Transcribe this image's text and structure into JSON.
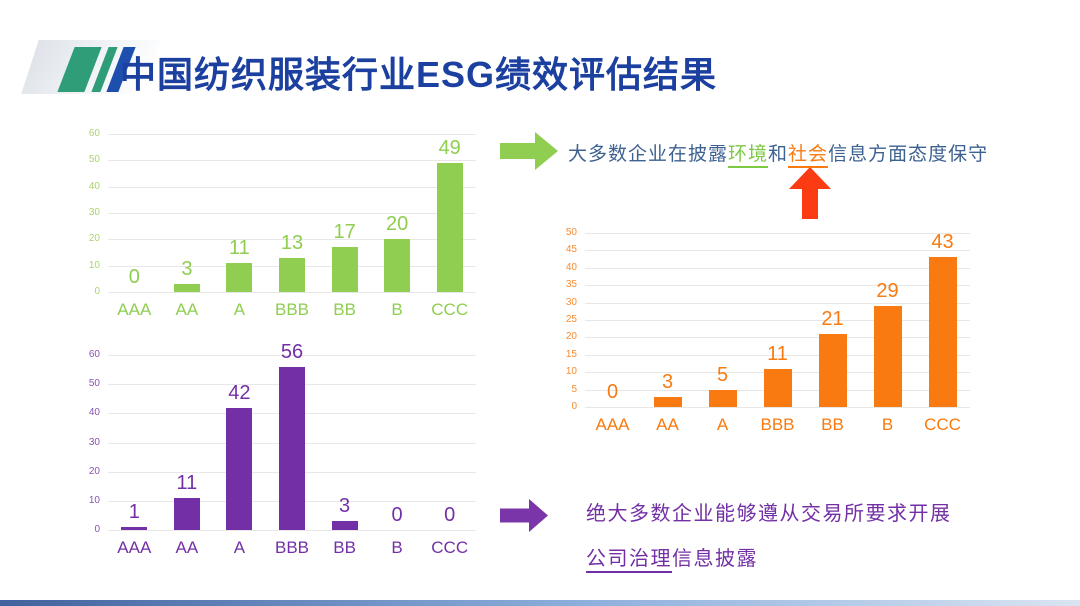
{
  "header": {
    "title": "中国纺织服装行业ESG绩效评估结果",
    "title_color": "#1c40a0",
    "logo_colors": {
      "teal": "#2f9e78",
      "blue": "#1e4fae"
    }
  },
  "annotations": {
    "env_social": {
      "prefix": "大多数企业在披露",
      "env": "环境",
      "mid": "和",
      "social": "社会",
      "suffix": "信息方面态度保守",
      "text_color": "#3d6191",
      "env_color": "#7dc944",
      "social_color": "#f87a10"
    },
    "governance": {
      "line1": "绝大多数企业能够遵从交易所要求开展",
      "line2_underlined": "公司治理",
      "line2_rest": "信息披露",
      "color": "#7330a6"
    }
  },
  "arrows": {
    "green_right": "#8fce50",
    "red_up": "#fb3c12",
    "purple_right": "#7a35a8"
  },
  "chart_data": [
    {
      "id": "environment-disclosure",
      "type": "bar",
      "title": "",
      "categories": [
        "AAA",
        "AA",
        "A",
        "BBB",
        "BB",
        "B",
        "CCC"
      ],
      "values": [
        0,
        3,
        11,
        13,
        17,
        20,
        49
      ],
      "ylim": [
        0,
        60
      ],
      "ystep": 10,
      "grid": true,
      "legend": "none",
      "color": "#8fce50",
      "tick_color": "#a7d56d"
    },
    {
      "id": "governance-disclosure",
      "type": "bar",
      "title": "",
      "categories": [
        "AAA",
        "AA",
        "A",
        "BBB",
        "BB",
        "B",
        "CCC"
      ],
      "values": [
        1,
        11,
        42,
        56,
        3,
        0,
        0
      ],
      "ylim": [
        0,
        60
      ],
      "ystep": 10,
      "grid": true,
      "legend": "none",
      "color": "#7330a6",
      "tick_color": "#8a53b4"
    },
    {
      "id": "social-disclosure",
      "type": "bar",
      "title": "",
      "categories": [
        "AAA",
        "AA",
        "A",
        "BBB",
        "BB",
        "B",
        "CCC"
      ],
      "values": [
        0,
        3,
        5,
        11,
        21,
        29,
        43
      ],
      "ylim": [
        0,
        50
      ],
      "ystep": 5,
      "grid": true,
      "legend": "none",
      "color": "#f87a10",
      "tick_color": "#f98c33"
    }
  ]
}
